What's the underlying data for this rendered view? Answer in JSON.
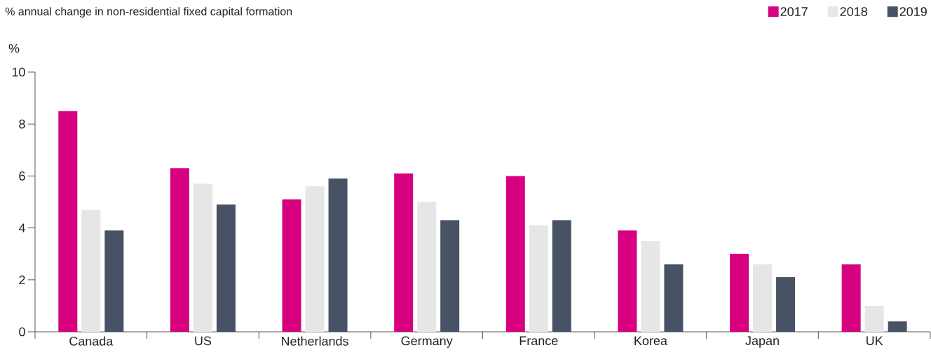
{
  "chart_data": {
    "type": "bar",
    "title": "% annual change in non-residential fixed capital formation",
    "ylabel": "%",
    "categories": [
      "Canada",
      "US",
      "Netherlands",
      "Germany",
      "France",
      "Korea",
      "Japan",
      "UK"
    ],
    "series": [
      {
        "name": "2017",
        "color": "#d7007f",
        "values": [
          8.5,
          6.3,
          5.1,
          6.1,
          6.0,
          3.9,
          3.0,
          2.6
        ]
      },
      {
        "name": "2018",
        "color": "#e6e6e6",
        "values": [
          4.7,
          5.7,
          5.6,
          5.0,
          4.1,
          3.5,
          2.6,
          1.0
        ]
      },
      {
        "name": "2019",
        "color": "#475264",
        "values": [
          3.9,
          4.9,
          5.9,
          4.3,
          4.3,
          2.6,
          2.1,
          0.4
        ]
      }
    ],
    "ylim": [
      0,
      10
    ],
    "yticks": [
      0,
      2,
      4,
      6,
      8,
      10
    ],
    "legend": "top right"
  }
}
